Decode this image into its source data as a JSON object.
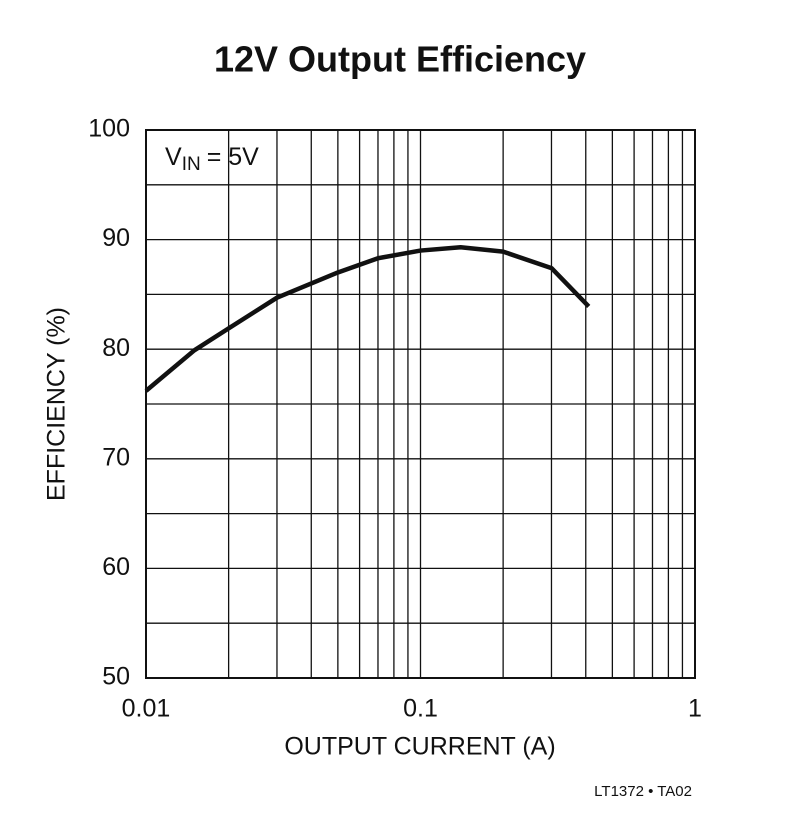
{
  "chart_data": {
    "type": "line",
    "title": "12V Output Efficiency",
    "x_label": "OUTPUT CURRENT (A)",
    "y_label": "EFFICIENCY (%)",
    "x_scale": "log",
    "grid": true,
    "xlim": [
      0.01,
      1
    ],
    "xticks": [
      0.01,
      0.1,
      1
    ],
    "minor_xticks": [
      0.02,
      0.03,
      0.04,
      0.05,
      0.06,
      0.07,
      0.08,
      0.09,
      0.2,
      0.3,
      0.4,
      0.5,
      0.6,
      0.7,
      0.8,
      0.9
    ],
    "ylim": [
      50,
      100
    ],
    "yticks": [
      50,
      60,
      70,
      80,
      90,
      100
    ],
    "minor_yticks": [
      55,
      65,
      75,
      85,
      95
    ],
    "annotation": [
      "V",
      "IN",
      "= 5V"
    ],
    "footnote": "LT1372 • TA02",
    "series": [
      {
        "color": "#111111",
        "x": [
          0.01,
          0.015,
          0.02,
          0.03,
          0.05,
          0.07,
          0.1,
          0.14,
          0.2,
          0.3,
          0.41
        ],
        "values": [
          76.2,
          79.9,
          81.9,
          84.7,
          87.0,
          88.3,
          89.0,
          89.3,
          88.9,
          87.4,
          83.9
        ]
      }
    ]
  }
}
